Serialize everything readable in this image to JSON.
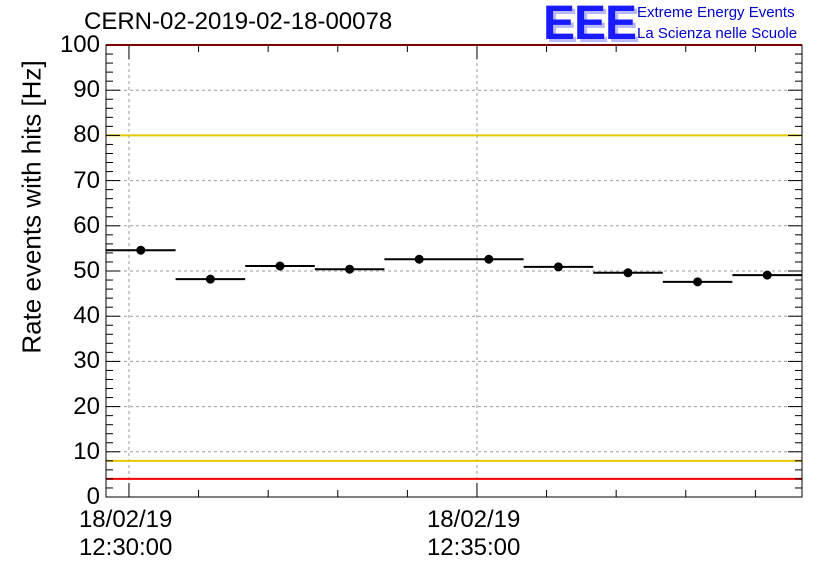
{
  "header": {
    "title": "CERN-02-2019-02-18-00078",
    "logo_text": "EEE",
    "brand_line1": "Extreme Energy Events",
    "brand_line2": "La Scienza nelle Scuole"
  },
  "chart_data": {
    "type": "scatter",
    "title": "CERN-02-2019-02-18-00078",
    "ylabel": "Rate events with hits [Hz]",
    "xlabel": "",
    "ylim": [
      0,
      100
    ],
    "yticks": [
      "0",
      "10",
      "20",
      "30",
      "40",
      "50",
      "60",
      "70",
      "80",
      "90",
      "100"
    ],
    "xticks": [
      {
        "time_min": 0,
        "line1": "18/02/19",
        "line2": "12:30:00"
      },
      {
        "time_min": 5,
        "line1": "18/02/19",
        "line2": "12:35:00"
      }
    ],
    "xlim_min": [
      -0.33,
      9.67
    ],
    "grid": true,
    "points": [
      {
        "x_min": 0.17,
        "half_width_min": 0.5,
        "y": 54.6
      },
      {
        "x_min": 1.17,
        "half_width_min": 0.5,
        "y": 48.2
      },
      {
        "x_min": 2.17,
        "half_width_min": 0.5,
        "y": 51.1
      },
      {
        "x_min": 3.17,
        "half_width_min": 0.5,
        "y": 50.4
      },
      {
        "x_min": 4.17,
        "half_width_min": 0.5,
        "y": 52.6
      },
      {
        "x_min": 5.17,
        "half_width_min": 0.5,
        "y": 52.6
      },
      {
        "x_min": 6.17,
        "half_width_min": 0.5,
        "y": 50.9
      },
      {
        "x_min": 7.17,
        "half_width_min": 0.5,
        "y": 49.6
      },
      {
        "x_min": 8.17,
        "half_width_min": 0.5,
        "y": 47.6
      },
      {
        "x_min": 9.17,
        "half_width_min": 0.5,
        "y": 49.1
      }
    ],
    "reference_lines": [
      {
        "y": 100,
        "color": "#ff0000"
      },
      {
        "y": 80,
        "color": "#e8c800"
      },
      {
        "y": 8,
        "color": "#e8c800"
      },
      {
        "y": 4,
        "color": "#ff0000"
      }
    ]
  }
}
